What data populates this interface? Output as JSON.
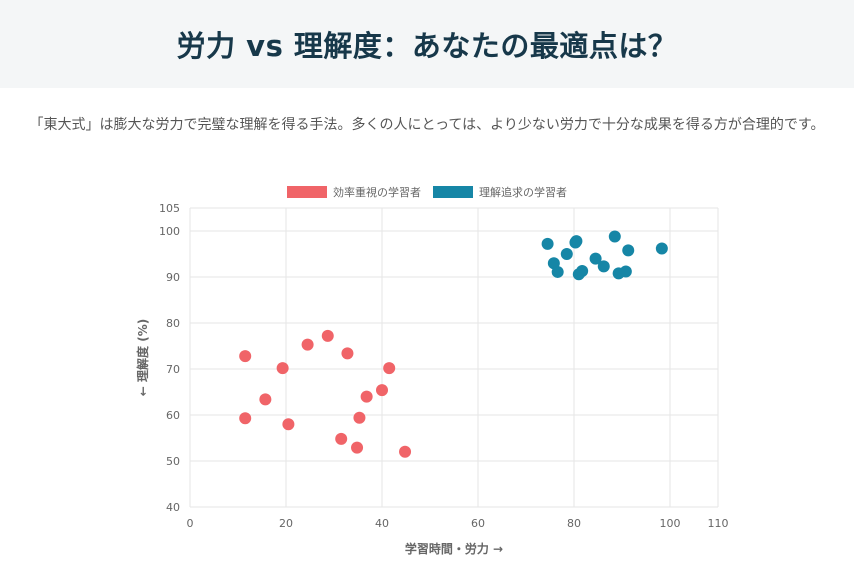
{
  "header": {
    "title": "労力 vs 理解度：あなたの最適点は？"
  },
  "intro": {
    "text": "「東大式」は膨大な労力で完璧な理解を得る手法。多くの人にとっては、より少ない労力で十分な成果を得る方が合理的です。"
  },
  "colors": {
    "efficiency": "#f06468",
    "understanding": "#1686a6",
    "grid": "#e6e6e6",
    "axis_text": "#666666"
  },
  "chart_data": {
    "type": "scatter",
    "xlabel": "学習時間・労力 →",
    "ylabel": "← 理解度 (%)",
    "xlim": [
      0,
      110
    ],
    "ylim": [
      40,
      105
    ],
    "xticks": [
      0,
      20,
      40,
      60,
      80,
      100,
      110
    ],
    "yticks": [
      40,
      50,
      60,
      70,
      80,
      90,
      100,
      105
    ],
    "grid": true,
    "legend_position": "top-center",
    "series": [
      {
        "name": "効率重視の学習者",
        "color": "#f06468",
        "points": [
          [
            11.5,
            72.8
          ],
          [
            19.3,
            70.2
          ],
          [
            24.5,
            75.3
          ],
          [
            28.7,
            77.2
          ],
          [
            32.8,
            73.4
          ],
          [
            41.5,
            70.2
          ],
          [
            15.7,
            63.4
          ],
          [
            11.5,
            59.3
          ],
          [
            20.5,
            58.0
          ],
          [
            40.0,
            65.4
          ],
          [
            36.8,
            64.0
          ],
          [
            35.3,
            59.4
          ],
          [
            31.5,
            54.8
          ],
          [
            34.8,
            52.9
          ],
          [
            44.8,
            52.0
          ]
        ]
      },
      {
        "name": "理解追求の学習者",
        "color": "#1686a6",
        "points": [
          [
            74.5,
            97.2
          ],
          [
            75.8,
            93.0
          ],
          [
            76.6,
            91.1
          ],
          [
            78.5,
            95.0
          ],
          [
            80.3,
            97.5
          ],
          [
            80.5,
            97.8
          ],
          [
            81.0,
            90.6
          ],
          [
            81.7,
            91.3
          ],
          [
            84.5,
            94.0
          ],
          [
            86.2,
            92.3
          ],
          [
            88.5,
            98.8
          ],
          [
            89.3,
            90.8
          ],
          [
            90.8,
            91.2
          ],
          [
            91.3,
            95.8
          ],
          [
            98.3,
            96.2
          ]
        ]
      }
    ]
  }
}
